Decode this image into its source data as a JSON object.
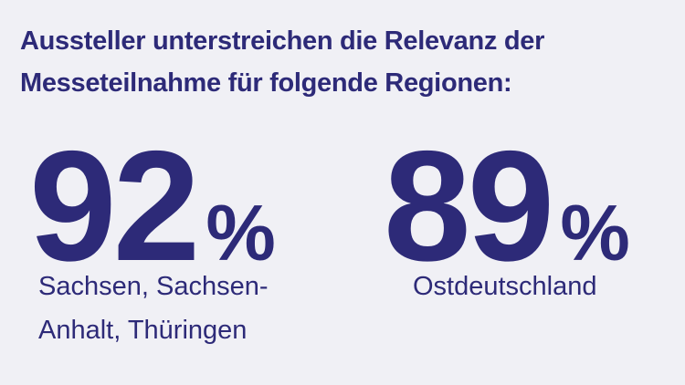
{
  "header": {
    "title_lines": [
      "Aussteller unterstreichen die Relevanz der",
      "Messeteilnahme für folgende Regionen:"
    ]
  },
  "stats": [
    {
      "number": 92,
      "unit": "%",
      "label_lines": [
        "Sachsen, Sachsen-",
        "Anhalt, Thüringen"
      ]
    },
    {
      "number": 89,
      "unit": "%",
      "label_lines": [
        "Ostdeutschland"
      ]
    }
  ]
}
